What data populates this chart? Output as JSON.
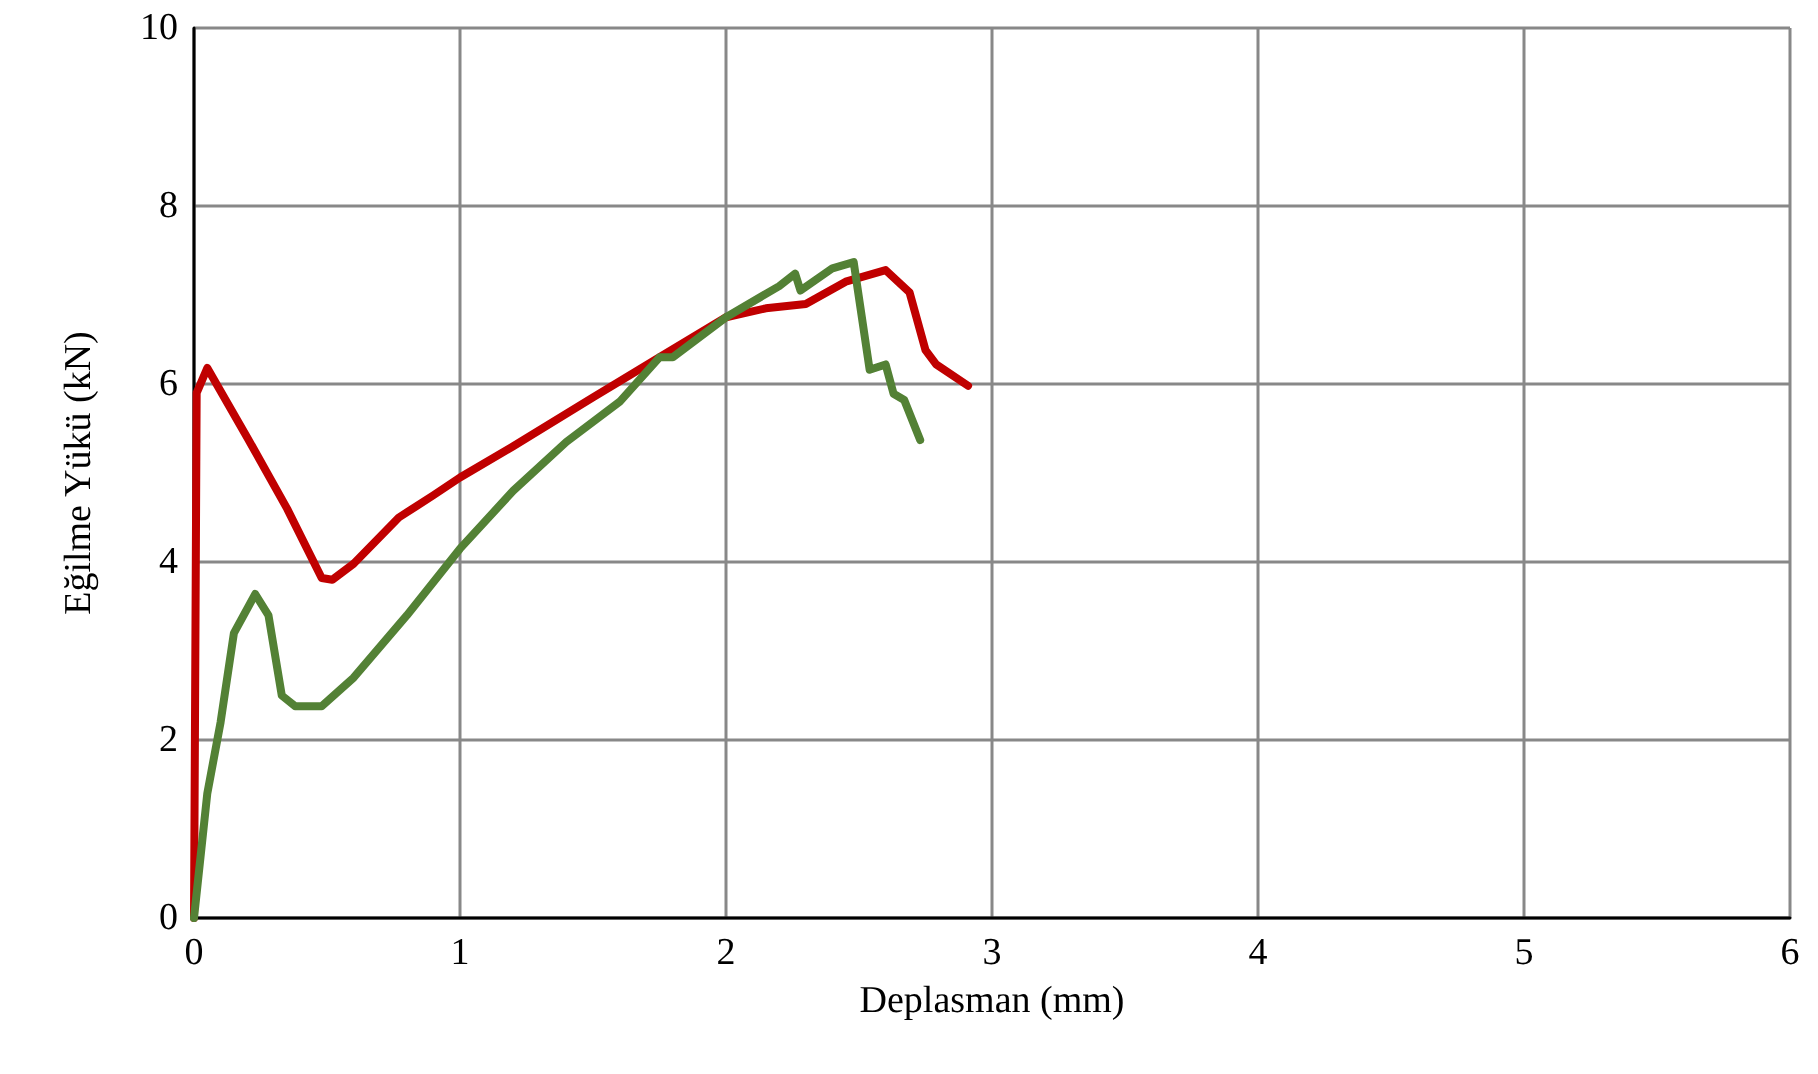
{
  "chart_data": {
    "type": "line",
    "xlabel": "Deplasman (mm)",
    "ylabel": "Eğilme Yükü (kN)",
    "xlim": [
      0,
      6
    ],
    "xticks": [
      0,
      1,
      2,
      3,
      4,
      5,
      6
    ],
    "ylim": [
      0,
      10
    ],
    "yticks": [
      0,
      2,
      4,
      6,
      8,
      10
    ],
    "grid": true,
    "marker": "none",
    "line_style": "solid",
    "series": [
      {
        "color": "#c00000",
        "x": [
          0,
          0.01,
          0.05,
          0.2,
          0.35,
          0.48,
          0.52,
          0.6,
          0.77,
          0.9,
          1,
          1.2,
          1.5,
          1.75,
          2,
          2.15,
          2.3,
          2.45,
          2.6,
          2.69,
          2.75,
          2.79,
          2.91
        ],
        "values": [
          0,
          5.9,
          6.18,
          5.4,
          4.6,
          3.82,
          3.8,
          3.98,
          4.5,
          4.75,
          4.95,
          5.3,
          5.85,
          6.3,
          6.75,
          6.85,
          6.9,
          7.15,
          7.28,
          7.03,
          6.38,
          6.22,
          5.98
        ]
      },
      {
        "color": "#538135",
        "x": [
          0,
          0.05,
          0.1,
          0.15,
          0.23,
          0.28,
          0.33,
          0.38,
          0.48,
          0.6,
          0.8,
          1,
          1.2,
          1.4,
          1.6,
          1.75,
          1.8,
          2,
          2.2,
          2.26,
          2.28,
          2.4,
          2.48,
          2.54,
          2.6,
          2.63,
          2.67,
          2.73
        ],
        "values": [
          0,
          1.4,
          2.2,
          3.2,
          3.64,
          3.4,
          2.5,
          2.38,
          2.38,
          2.7,
          3.4,
          4.15,
          4.8,
          5.35,
          5.8,
          6.3,
          6.3,
          6.75,
          7.1,
          7.24,
          7.05,
          7.3,
          7.37,
          6.16,
          6.22,
          5.89,
          5.82,
          5.37
        ]
      }
    ]
  }
}
